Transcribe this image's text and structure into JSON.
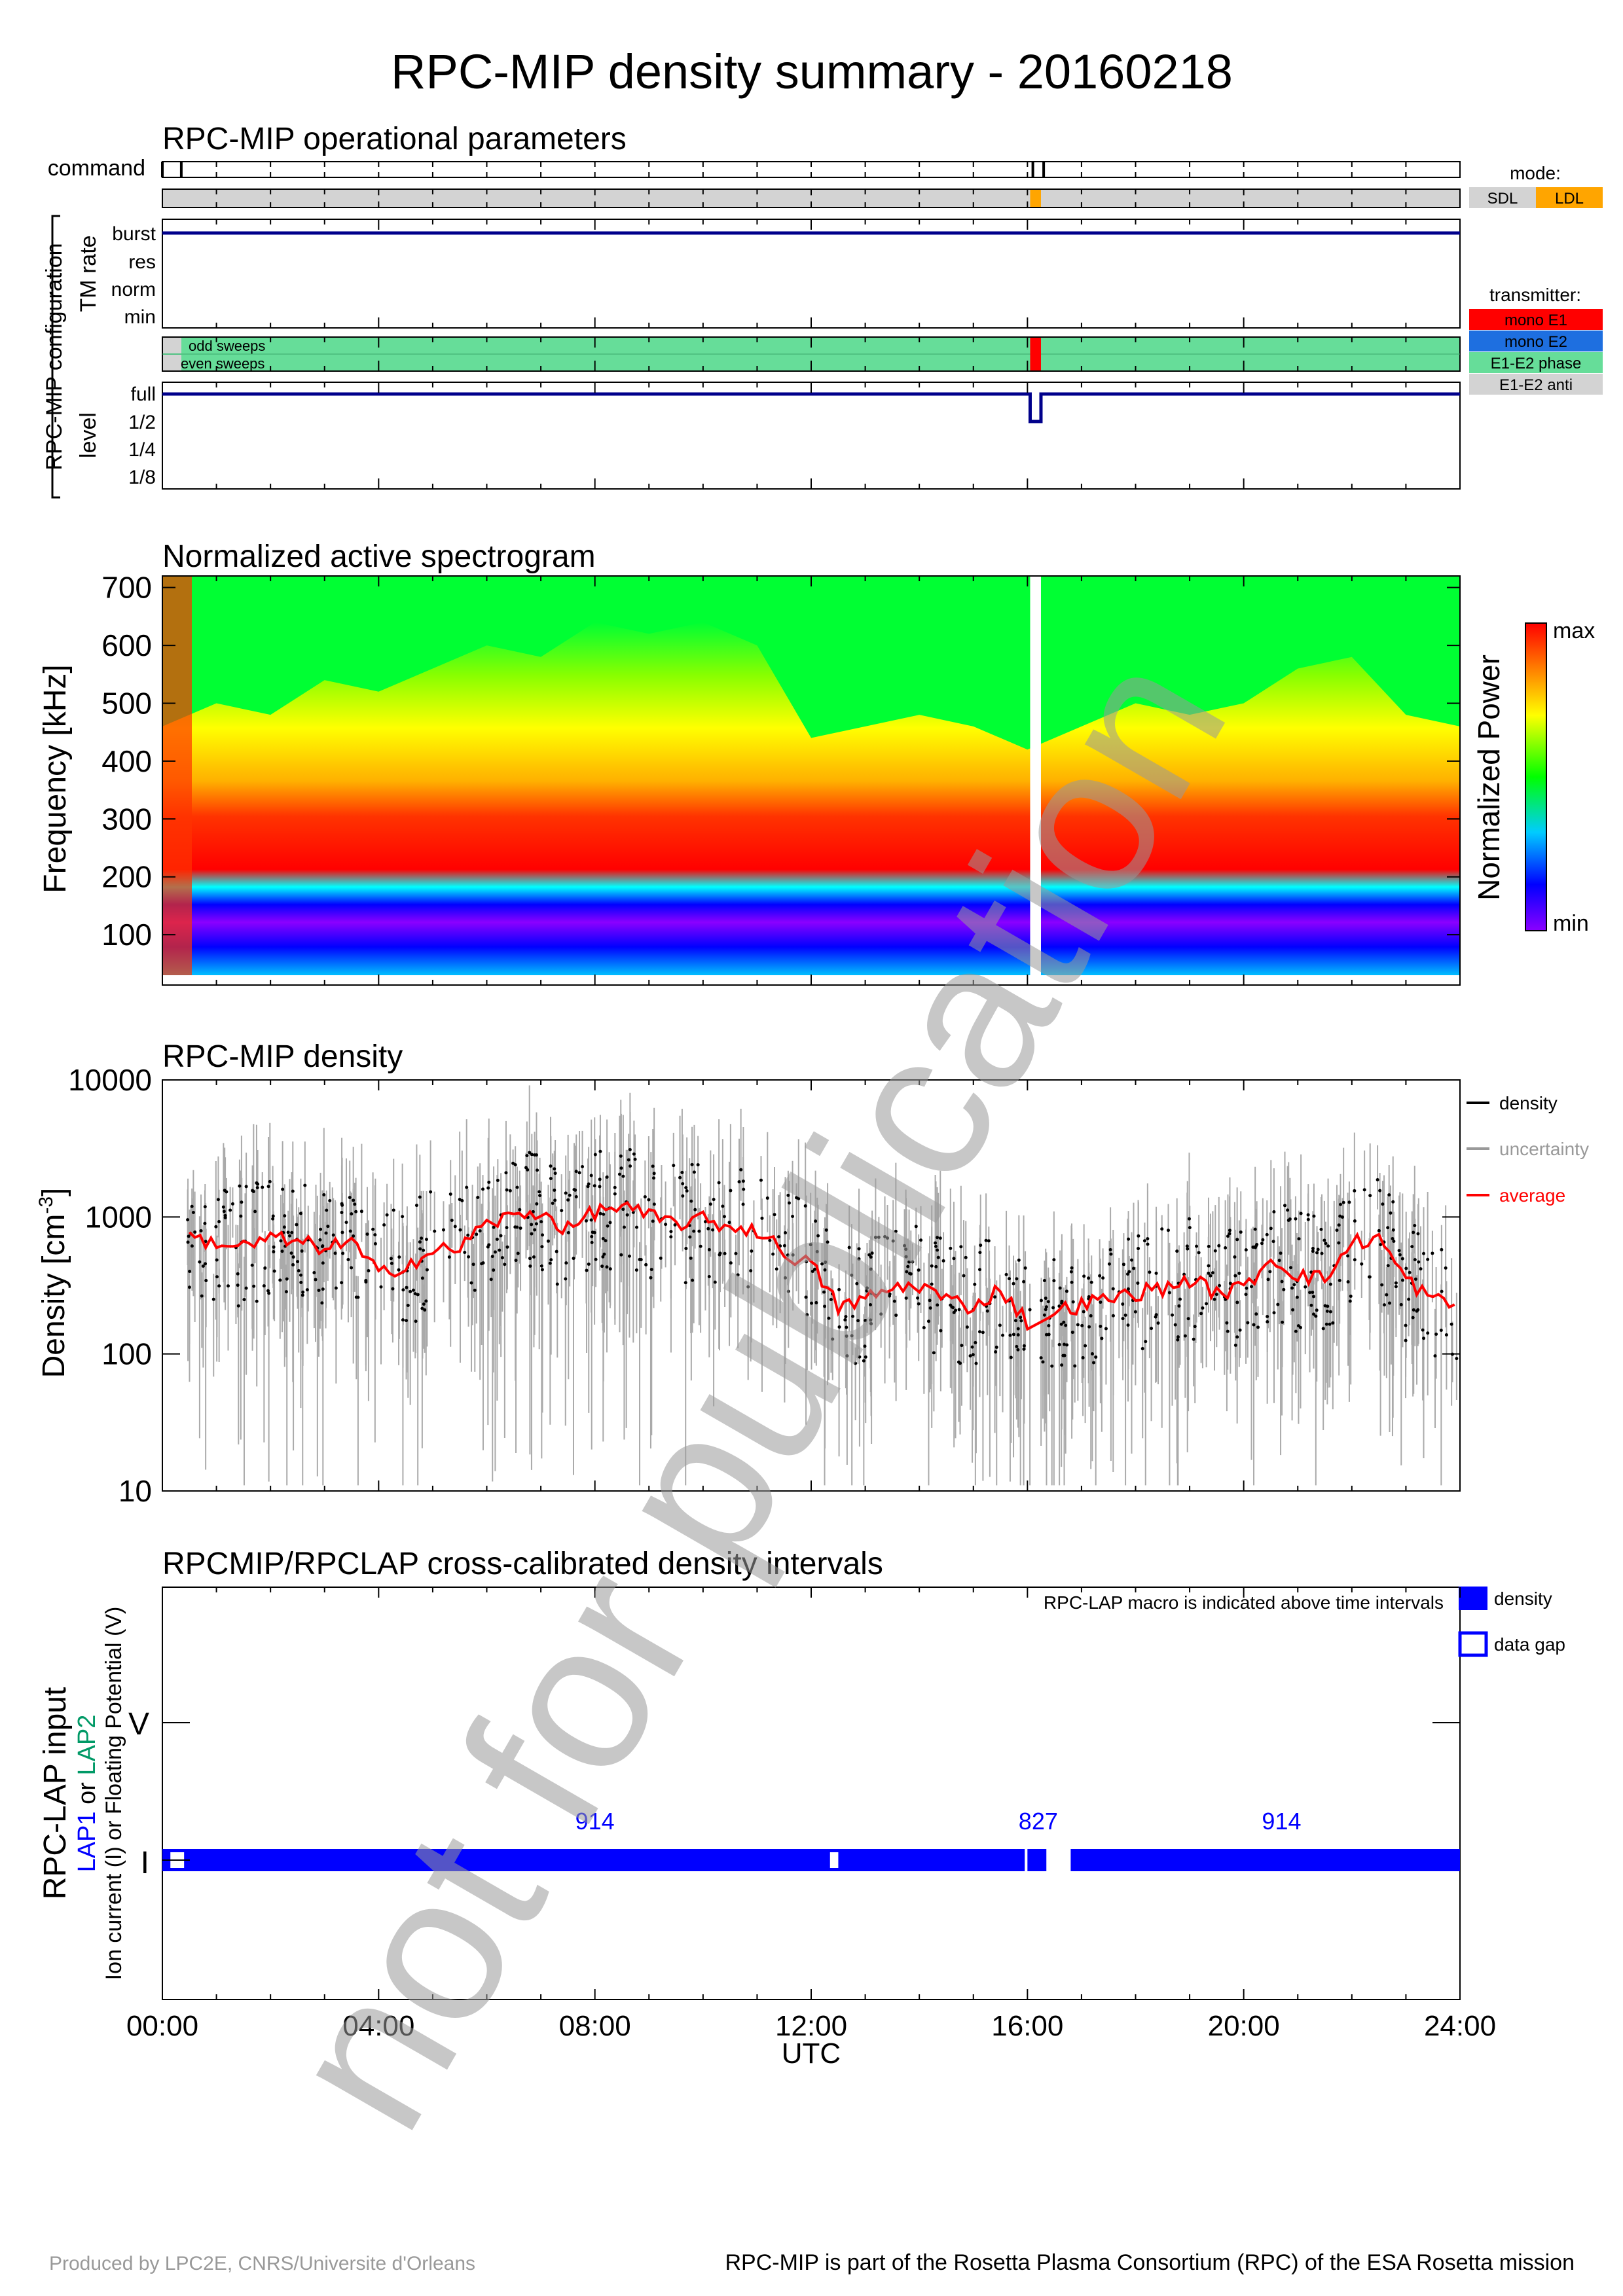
{
  "title": "RPC-MIP density summary - 20160218",
  "watermark": "not for publication",
  "footer": {
    "left": "Produced by LPC2E, CNRS/Universite d'Orleans",
    "right": "RPC-MIP is part of the Rosetta Plasma Consortium (RPC) of the ESA Rosetta mission"
  },
  "time_axis": {
    "labels": [
      "00:00",
      "04:00",
      "08:00",
      "12:00",
      "16:00",
      "20:00",
      "24:00"
    ],
    "xlabel": "UTC"
  },
  "panel1": {
    "title": "RPC-MIP operational parameters",
    "command_label": "command",
    "group_label": "RPC-MIP configuration",
    "tm_label": "TM rate",
    "tm_ticks": [
      "burst",
      "res",
      "norm",
      "min"
    ],
    "sweep_odd": "odd sweeps",
    "sweep_even": "even sweeps",
    "level_label": "level",
    "level_ticks": [
      "full",
      "1/2",
      "1/4",
      "1/8"
    ],
    "mode": {
      "title": "mode:",
      "items": [
        {
          "label": "SDL",
          "color": "#d3d3d3"
        },
        {
          "label": "LDL",
          "color": "#ffa500"
        }
      ]
    },
    "transmitter": {
      "title": "transmitter:",
      "items": [
        {
          "label": "mono E1",
          "color": "#ff0000"
        },
        {
          "label": "mono E2",
          "color": "#1e6fe0"
        },
        {
          "label": "E1-E2 phase",
          "color": "#66dd99"
        },
        {
          "label": "E1-E2 anti",
          "color": "#d3d3d3"
        }
      ]
    },
    "command_marks_h": [
      0.0,
      0.35,
      16.1,
      16.3
    ],
    "ldl_interval_h": [
      16.05,
      16.25
    ],
    "mono_e1_interval_h": [
      16.05,
      16.25
    ],
    "level_drop_h": [
      16.05,
      16.25
    ]
  },
  "panel2": {
    "title": "Normalized active spectrogram",
    "ylabel": "Frequency [kHz]",
    "yticks": [
      "100",
      "200",
      "300",
      "400",
      "500",
      "600",
      "700"
    ],
    "cbar_label": "Normalized Power",
    "cbar_max": "max",
    "cbar_min": "min",
    "gap_h": [
      16.05,
      16.25
    ]
  },
  "panel3": {
    "title": "RPC-MIP density",
    "ylabel": "Density [cm",
    "ylabel_sup": "-3",
    "ylabel_end": "]",
    "yticks": [
      "10",
      "100",
      "1000",
      "10000"
    ],
    "legend": [
      {
        "label": "density",
        "color": "#000000"
      },
      {
        "label": "uncertainty",
        "color": "#999999"
      },
      {
        "label": "average",
        "color": "#ff0000"
      }
    ]
  },
  "panel4": {
    "title": "RPCMIP/RPCLAP cross-calibrated density intervals",
    "note": "RPC-LAP macro is indicated above time intervals",
    "ylabel_main": "RPC-LAP input",
    "ylabel_lap1": "LAP1",
    "ylabel_or": " or ",
    "ylabel_lap2": "LAP2",
    "ylabel_sub": "Ion current (I) or Floating Potential (V)",
    "y_V": "V",
    "y_I": "I",
    "legend": [
      {
        "label": "density",
        "type": "filled"
      },
      {
        "label": "data gap",
        "type": "open"
      }
    ],
    "macros": [
      {
        "label": "914",
        "at_h": 8.0
      },
      {
        "label": "827",
        "at_h": 16.2
      },
      {
        "label": "914",
        "at_h": 20.7
      }
    ]
  },
  "chart_data": [
    {
      "type": "heatmap",
      "title": "Normalized active spectrogram",
      "xlabel": "UTC",
      "ylabel": "Frequency [kHz]",
      "xlim_h": [
        0,
        24
      ],
      "ylim": [
        30,
        720
      ],
      "colorbar": {
        "label": "Normalized Power",
        "min": "min",
        "max": "max"
      },
      "plasma_line_peak_khz_by_hour": [
        [
          0,
          230
        ],
        [
          1,
          250
        ],
        [
          2,
          240
        ],
        [
          3,
          270
        ],
        [
          4,
          260
        ],
        [
          5,
          280
        ],
        [
          6,
          300
        ],
        [
          7,
          290
        ],
        [
          8,
          320
        ],
        [
          9,
          310
        ],
        [
          10,
          320
        ],
        [
          11,
          300
        ],
        [
          12,
          220
        ],
        [
          13,
          230
        ],
        [
          14,
          240
        ],
        [
          15,
          230
        ],
        [
          16,
          210
        ],
        [
          17,
          230
        ],
        [
          18,
          250
        ],
        [
          19,
          240
        ],
        [
          20,
          250
        ],
        [
          21,
          280
        ],
        [
          22,
          290
        ],
        [
          23,
          240
        ],
        [
          24,
          230
        ]
      ]
    },
    {
      "type": "line",
      "title": "RPC-MIP density",
      "xlabel": "UTC",
      "ylabel": "Density [cm-3]",
      "yscale": "log",
      "ylim": [
        10,
        10000
      ],
      "xlim_h": [
        0,
        24
      ],
      "series": [
        {
          "name": "average",
          "x_h": [
            0.5,
            1,
            1.5,
            2,
            2.5,
            3,
            3.5,
            4,
            4.5,
            5,
            5.5,
            6,
            6.5,
            7,
            7.5,
            8,
            8.5,
            9,
            9.5,
            10,
            10.5,
            11,
            11.5,
            12,
            12.5,
            13,
            13.5,
            14,
            14.5,
            15,
            15.5,
            16,
            16.5,
            17,
            17.5,
            18,
            18.5,
            19,
            19.5,
            20,
            20.5,
            21,
            21.5,
            22,
            22.5,
            23,
            23.5,
            24
          ],
          "values": [
            700,
            650,
            600,
            700,
            650,
            600,
            650,
            380,
            450,
            550,
            600,
            900,
            1000,
            1100,
            800,
            1100,
            1200,
            1000,
            900,
            950,
            850,
            800,
            550,
            450,
            220,
            250,
            300,
            320,
            250,
            220,
            300,
            170,
            200,
            230,
            250,
            280,
            300,
            350,
            280,
            300,
            500,
            380,
            350,
            650,
            700,
            350,
            250,
            220
          ]
        }
      ]
    },
    {
      "type": "bar",
      "title": "RPCMIP/RPCLAP cross-calibrated density intervals",
      "xlabel": "UTC",
      "categories": [
        "I"
      ],
      "intervals_h": [
        {
          "start": 0.0,
          "end": 15.95,
          "kind": "density"
        },
        {
          "start": 16.0,
          "end": 16.35,
          "kind": "density"
        },
        {
          "start": 16.8,
          "end": 24.0,
          "kind": "density"
        }
      ],
      "gaps_h": [
        {
          "start": 0.1,
          "end": 0.45
        },
        {
          "start": 12.3,
          "end": 12.55
        }
      ]
    }
  ]
}
